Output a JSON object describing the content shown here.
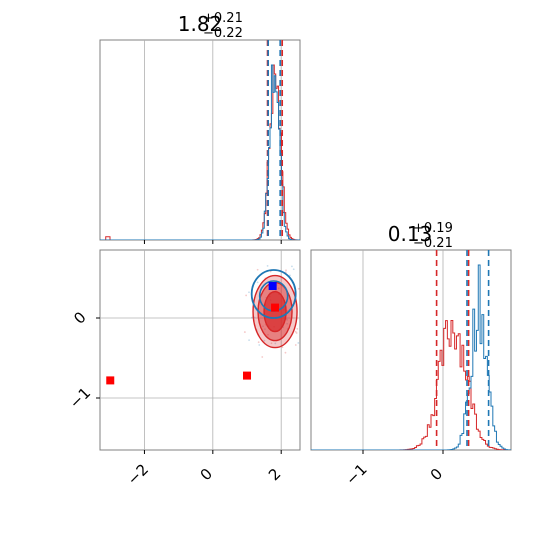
{
  "chart_data": {
    "type": "corner",
    "colors": {
      "blue": "#1f77b4",
      "red": "#d62728",
      "grid": "#b0b0b0",
      "axis": "#808080"
    },
    "param_titles": [
      {
        "value": "1.82",
        "plus": "+0.21",
        "minus": "−0.22"
      },
      {
        "value": "0.13",
        "plus": "+0.19",
        "minus": "−0.21"
      }
    ],
    "x_ticks_param1": [
      {
        "value": -2,
        "label": "−2"
      },
      {
        "value": 0,
        "label": "0"
      },
      {
        "value": 2,
        "label": "2"
      }
    ],
    "x_ticks_param2": [
      {
        "value": -1,
        "label": "−1"
      },
      {
        "value": 0,
        "label": "0"
      }
    ],
    "y_ticks_param2": [
      {
        "value": 0,
        "label": "0"
      },
      {
        "value": -1,
        "label": "−1"
      }
    ],
    "axis_ranges": {
      "param1": [
        -3.3,
        2.55
      ],
      "param2": [
        -1.65,
        0.85
      ]
    },
    "histogram_1d": {
      "param1": {
        "quantiles_red": [
          1.6,
          2.03
        ],
        "quantiles_blue": [
          1.62,
          1.97
        ],
        "max_density": 1.0
      },
      "param2": {
        "quantiles_red": [
          -0.08,
          0.32
        ],
        "quantiles_blue": [
          0.3,
          0.57
        ],
        "max_density": 1.0
      }
    },
    "markers_2d": [
      {
        "color": "red",
        "x": -3.0,
        "y": -0.78
      },
      {
        "color": "red",
        "x": 1.0,
        "y": -0.72
      },
      {
        "color": "red",
        "x": 1.82,
        "y": 0.13
      },
      {
        "color": "blue",
        "x": 1.75,
        "y": 0.4
      }
    ]
  }
}
